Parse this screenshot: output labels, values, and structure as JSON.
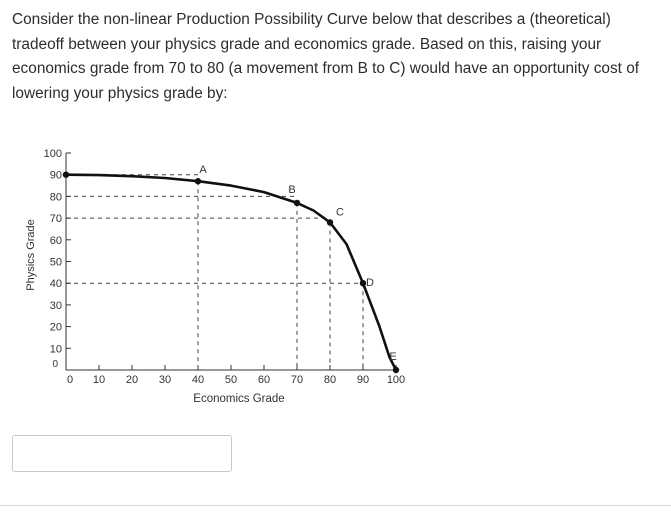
{
  "question": {
    "text": "Consider the non-linear Production Possibility Curve below that describes a (theoretical) tradeoff between your physics grade and economics grade. Based on this, raising your economics grade from 70 to 80 (a movement from B to C) would have an opportunity cost of lowering your physics grade by:"
  },
  "chart_data": {
    "type": "line",
    "xlabel": "Economics Grade",
    "ylabel": "Physics Grade",
    "xlim": [
      0,
      100
    ],
    "ylim": [
      0,
      100
    ],
    "x_ticks": [
      0,
      10,
      20,
      30,
      40,
      50,
      60,
      70,
      80,
      90,
      100
    ],
    "y_ticks": [
      0,
      10,
      20,
      30,
      40,
      50,
      60,
      70,
      80,
      90,
      100
    ],
    "grid": false,
    "curve": [
      {
        "x": 0,
        "y": 90
      },
      {
        "x": 10,
        "y": 89.8
      },
      {
        "x": 20,
        "y": 89.3
      },
      {
        "x": 30,
        "y": 88.5
      },
      {
        "x": 40,
        "y": 87
      },
      {
        "x": 50,
        "y": 85
      },
      {
        "x": 60,
        "y": 82
      },
      {
        "x": 70,
        "y": 77
      },
      {
        "x": 75,
        "y": 73.5
      },
      {
        "x": 80,
        "y": 68
      },
      {
        "x": 85,
        "y": 58
      },
      {
        "x": 90,
        "y": 40
      },
      {
        "x": 95,
        "y": 20
      },
      {
        "x": 98,
        "y": 6
      },
      {
        "x": 100,
        "y": 0
      }
    ],
    "points": [
      {
        "label": "",
        "x": 0,
        "y": 90
      },
      {
        "label": "A",
        "x": 40,
        "y": 87
      },
      {
        "label": "B",
        "x": 70,
        "y": 77
      },
      {
        "label": "C",
        "x": 80,
        "y": 68
      },
      {
        "label": "D",
        "x": 90,
        "y": 40
      },
      {
        "label": "E",
        "x": 100,
        "y": 0
      }
    ],
    "guide_lines": [
      {
        "axis": "y",
        "value": 90
      },
      {
        "axis": "y",
        "value": 80
      },
      {
        "axis": "y",
        "value": 70
      },
      {
        "axis": "y",
        "value": 40
      },
      {
        "axis": "x",
        "value": 40
      },
      {
        "axis": "x",
        "value": 70
      },
      {
        "axis": "x",
        "value": 80
      },
      {
        "axis": "x",
        "value": 90
      }
    ],
    "colors": {
      "curve": "#111111",
      "guide": "#444444",
      "axis": "#333333",
      "text": "#333333"
    }
  },
  "answer": {
    "value": "",
    "placeholder": ""
  }
}
